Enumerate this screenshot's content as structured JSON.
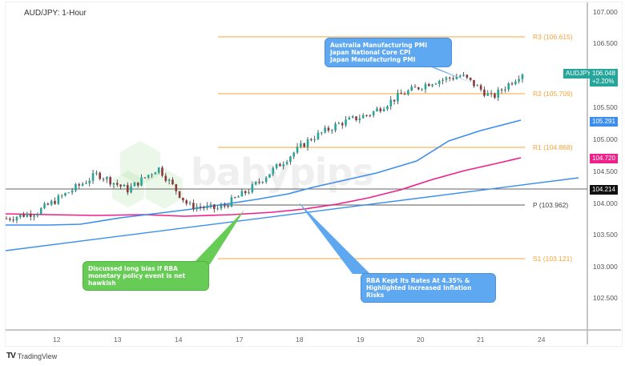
{
  "header": {
    "title": "AUD/JPY: 1-Hour"
  },
  "watermark": "babypips",
  "footer": {
    "logo_glyph": "TV",
    "brand": "TradingView"
  },
  "price_axis": {
    "ticks": [
      "107.000",
      "106.500",
      "105.500",
      "105.000",
      "104.500",
      "104.000",
      "103.500",
      "103.000",
      "102.500"
    ],
    "symbol_badge": "AUDJPY",
    "last_price": "106.048",
    "change": "+2.20%",
    "ma_fast_value": "105.291",
    "ma_mid_value": "104.720",
    "hline_value": "104.214"
  },
  "time_axis": {
    "ticks": [
      "12",
      "13",
      "14",
      "17",
      "18",
      "19",
      "20",
      "21",
      "24"
    ]
  },
  "levels": {
    "r3": "R3 (106.615)",
    "r2": "R2 (105.709)",
    "r1": "R1 (104.868)",
    "p": "P (103.962)",
    "s1": "S1 (103.121)"
  },
  "annotations": {
    "top": [
      "Australia Manufacturing PMI",
      "Japan National Core CPI",
      "Japan Manufacturing PMI"
    ],
    "green": [
      "Discussed long bias if RBA",
      "monetary policy event is net",
      "hawkish"
    ],
    "blue_bottom": [
      "RBA Kept Its Rates At 4.35% &",
      "Highlighted Increased Inflation",
      "Risks"
    ]
  },
  "colors": {
    "up": "#26a69a",
    "down": "#8b3a3a",
    "pivot_resistance": "#f7a33a",
    "pivot": "#7a7a7a",
    "ma_fast": "#3b8df0",
    "ma_mid": "#f0208a",
    "trendline": "#3b8df0",
    "callout_blue": "#5ea8f2",
    "callout_green": "#66cc55",
    "badge_teal": "#26a69a",
    "hline": "#222222"
  },
  "chart_data": {
    "type": "candlestick",
    "title": "AUD/JPY: 1-Hour",
    "xlabel": "",
    "ylabel": "",
    "ylim": [
      102.3,
      107.1
    ],
    "x_ticks": [
      "12",
      "13",
      "14",
      "17",
      "18",
      "19",
      "20",
      "21",
      "24"
    ],
    "y_ticks": [
      107.0,
      106.5,
      105.5,
      105.0,
      104.5,
      104.0,
      103.5,
      103.0,
      102.5
    ],
    "approx_close_path": [
      {
        "x": "11 (start)",
        "close": 103.75
      },
      {
        "x": "12",
        "close": 103.85
      },
      {
        "x": "12.5",
        "close": 104.15
      },
      {
        "x": "13",
        "close": 104.45
      },
      {
        "x": "13.5",
        "close": 104.2
      },
      {
        "x": "14",
        "close": 104.55
      },
      {
        "x": "14.5",
        "close": 103.95
      },
      {
        "x": "17",
        "close": 103.9
      },
      {
        "x": "17.5",
        "close": 104.2
      },
      {
        "x": "18",
        "close": 104.6
      },
      {
        "x": "18.5",
        "close": 105.0
      },
      {
        "x": "19",
        "close": 105.25
      },
      {
        "x": "19.5",
        "close": 105.4
      },
      {
        "x": "20",
        "close": 105.7
      },
      {
        "x": "20.5",
        "close": 105.9
      },
      {
        "x": "21",
        "close": 106.0
      },
      {
        "x": "21.3",
        "close": 105.65
      },
      {
        "x": "21.6",
        "close": 106.048
      }
    ],
    "horizontal_levels": [
      {
        "name": "R3",
        "value": 106.615
      },
      {
        "name": "R2",
        "value": 105.709
      },
      {
        "name": "R1",
        "value": 104.868
      },
      {
        "name": "P",
        "value": 103.962
      },
      {
        "name": "S1",
        "value": 103.121
      },
      {
        "name": "hline",
        "value": 104.214
      }
    ],
    "series": [
      {
        "name": "MA fast (blue)",
        "last": 105.291
      },
      {
        "name": "MA mid (pink)",
        "last": 104.72
      },
      {
        "name": "Trendline (blue)",
        "last": 104.35
      }
    ],
    "last_price": 106.048,
    "change_pct": "+2.20%",
    "grid": false,
    "legend": "none"
  }
}
